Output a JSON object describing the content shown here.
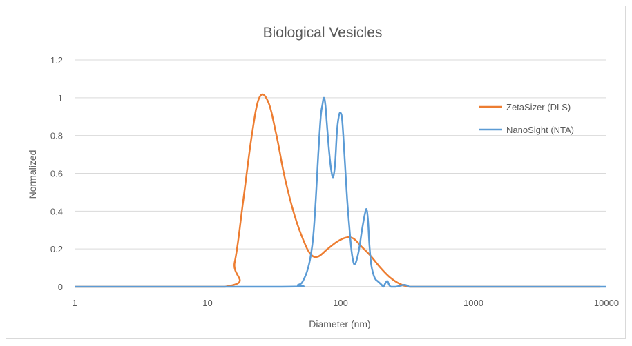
{
  "chart_data": {
    "type": "line",
    "title": "Biological Vesicles",
    "xlabel": "Diameter (nm)",
    "ylabel": "Normalized",
    "x_scale": "log",
    "xlim": [
      1,
      10000
    ],
    "ylim": [
      0,
      1.2
    ],
    "x_ticks": [
      1,
      10,
      100,
      1000,
      10000
    ],
    "x_tick_labels": [
      "1",
      "10",
      "100",
      "1000",
      "10000"
    ],
    "y_ticks": [
      0,
      0.2,
      0.4,
      0.6,
      0.8,
      1,
      1.2
    ],
    "y_tick_labels": [
      "0",
      "0.2",
      "0.4",
      "0.6",
      "0.8",
      "1",
      "1.2"
    ],
    "grid": "horizontal",
    "legend_position": "right",
    "series": [
      {
        "name": "ZetaSizer (DLS)",
        "color": "#ed7d31",
        "x": [
          1,
          13.5,
          16,
          18.5,
          21.5,
          24.5,
          28.5,
          33,
          38,
          45,
          53,
          60,
          68,
          80,
          95,
          110,
          125,
          145,
          170,
          200,
          235,
          280,
          330,
          400,
          600,
          1000,
          3000,
          9000
        ],
        "y": [
          0,
          0,
          0.13,
          0.45,
          0.8,
          1.0,
          0.98,
          0.8,
          0.58,
          0.38,
          0.24,
          0.17,
          0.16,
          0.2,
          0.24,
          0.26,
          0.255,
          0.21,
          0.16,
          0.1,
          0.05,
          0.015,
          0,
          0,
          0,
          0,
          0,
          0
        ]
      },
      {
        "name": "NanoSight (NTA)",
        "color": "#5b9bd5",
        "x": [
          1,
          36,
          48,
          53,
          58,
          62,
          65,
          68,
          71,
          73,
          75,
          77,
          79,
          82,
          85,
          88,
          91,
          94,
          97,
          100,
          103,
          107,
          112,
          117,
          121,
          125,
          128,
          132,
          138,
          145,
          152,
          157,
          161,
          165,
          170,
          176,
          183,
          190,
          197,
          204,
          210,
          218,
          225,
          232,
          240,
          260,
          300,
          320,
          340,
          500,
          1000,
          10000
        ],
        "y": [
          0,
          0,
          0.01,
          0.04,
          0.12,
          0.25,
          0.45,
          0.7,
          0.9,
          0.96,
          1.0,
          0.96,
          0.86,
          0.72,
          0.62,
          0.58,
          0.65,
          0.82,
          0.9,
          0.92,
          0.88,
          0.7,
          0.47,
          0.3,
          0.19,
          0.13,
          0.12,
          0.14,
          0.2,
          0.3,
          0.38,
          0.41,
          0.35,
          0.22,
          0.12,
          0.07,
          0.04,
          0.03,
          0.02,
          0.01,
          0,
          0.02,
          0.03,
          0.01,
          0,
          0,
          0.01,
          0.005,
          0,
          0,
          0,
          0
        ]
      }
    ]
  }
}
